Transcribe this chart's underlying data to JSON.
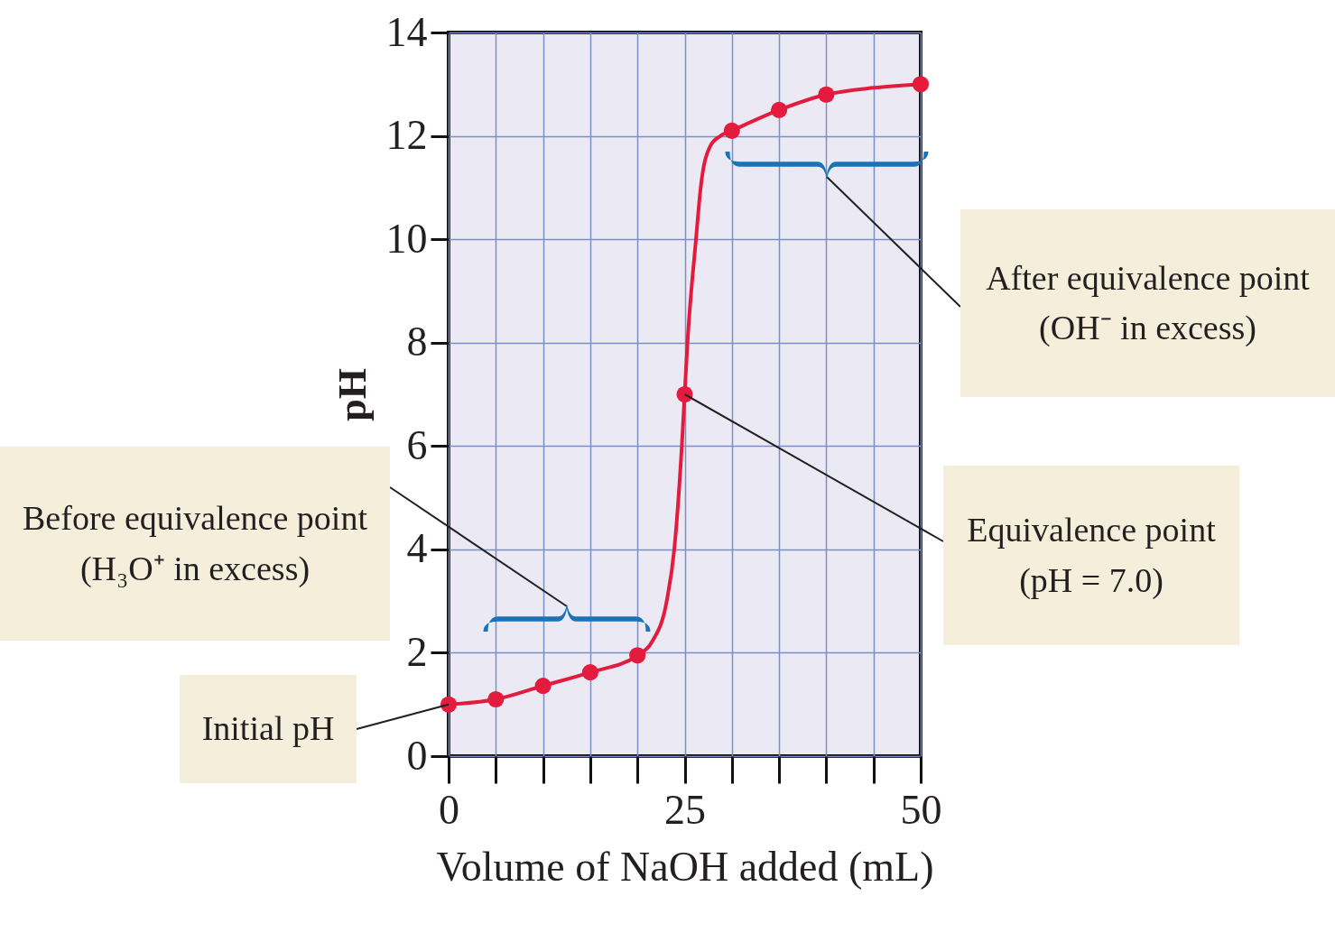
{
  "chart_data": {
    "type": "line",
    "xlabel": "Volume of NaOH added (mL)",
    "ylabel": "pH",
    "xlim": [
      0,
      50
    ],
    "ylim": [
      0,
      14
    ],
    "xticks": [
      0,
      {
        "value": 5,
        "label": null
      },
      {
        "value": 10,
        "label": null
      },
      {
        "value": 15,
        "label": null
      },
      {
        "value": 20,
        "label": null
      },
      25,
      {
        "value": 30,
        "label": null
      },
      {
        "value": 35,
        "label": null
      },
      {
        "value": 40,
        "label": null
      },
      {
        "value": 45,
        "label": null
      },
      50
    ],
    "yticks": [
      0,
      2,
      4,
      6,
      8,
      10,
      12,
      14
    ],
    "grid": true,
    "series": [
      {
        "type": "line",
        "color": "#e31b3c",
        "marker": "none",
        "x": [
          0,
          5,
          10,
          15,
          20,
          21.5,
          23.1,
          23.9,
          24.7,
          25,
          25.3,
          26.2,
          26.7,
          27.7,
          28.8,
          30,
          35,
          40,
          45,
          50
        ],
        "values": [
          1.0,
          1.1,
          1.36,
          1.62,
          1.95,
          2.2,
          3,
          4,
          6,
          7.0,
          8,
          10,
          11,
          11.8,
          12.0,
          12.1,
          12.5,
          12.8,
          12.93,
          13.0
        ]
      },
      {
        "type": "scatter",
        "color": "#e31b3c",
        "marker": "circle",
        "x": [
          0,
          5,
          10,
          15,
          20,
          25,
          30,
          35,
          40,
          50
        ],
        "values": [
          1.0,
          1.1,
          1.36,
          1.62,
          1.95,
          7.0,
          12.1,
          12.5,
          12.8,
          13.0
        ]
      }
    ],
    "annotations": [
      "After equivalence point\n(OH⁻ in excess)",
      {
        "text": "Equivalence point\n(pH = 7.0)",
        "x": 25,
        "y": 7.0
      },
      "Before equivalence point\n(H₃O⁺ in excess)",
      {
        "text": "Initial pH",
        "x": 0,
        "y": 1.0
      }
    ]
  }
}
